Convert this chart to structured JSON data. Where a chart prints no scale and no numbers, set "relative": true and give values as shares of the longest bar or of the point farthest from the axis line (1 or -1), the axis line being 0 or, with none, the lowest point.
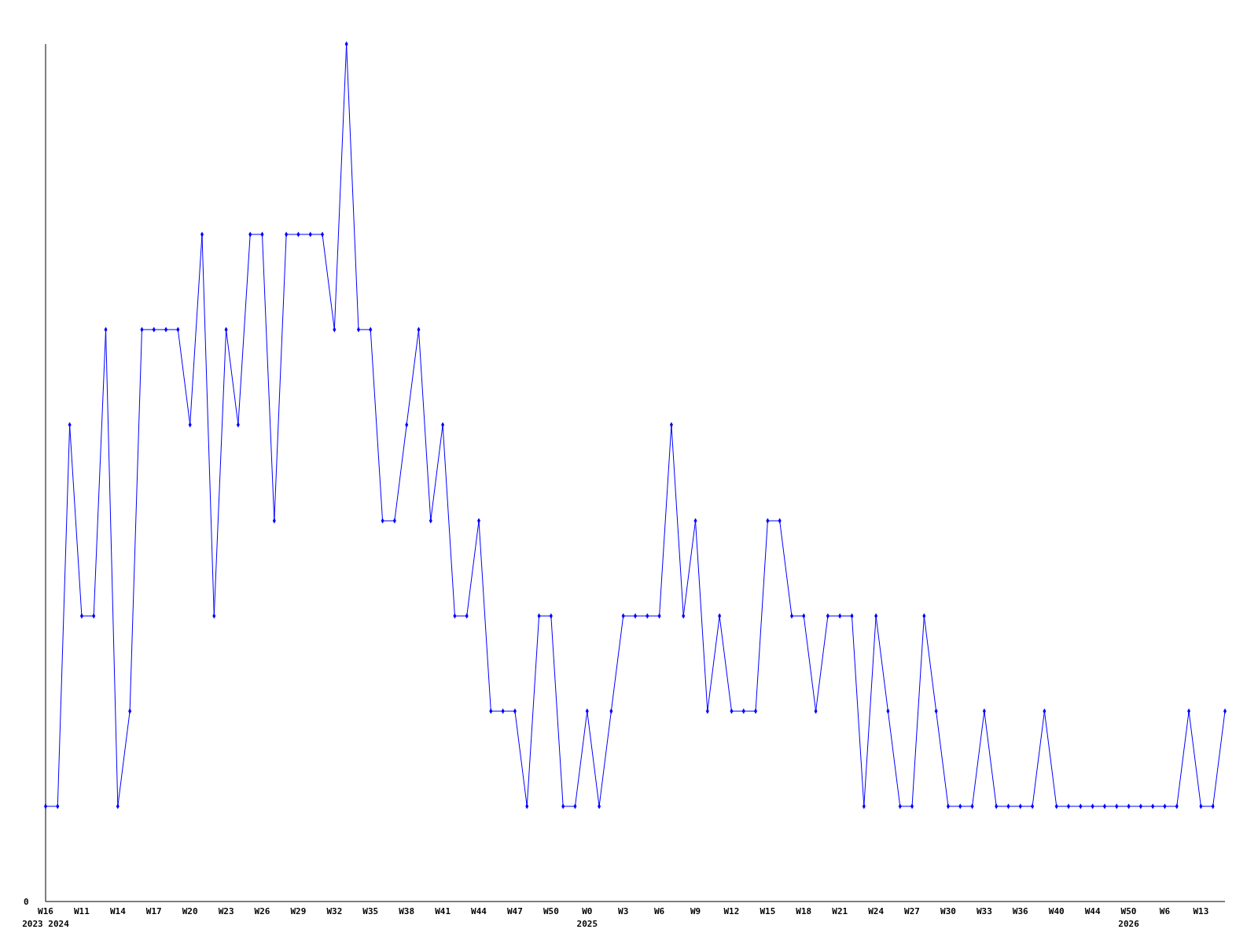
{
  "chart_data": {
    "type": "line",
    "relative": true,
    "marker": "diamond",
    "categories": [
      "W16\n2023 2024",
      null,
      null,
      "W11",
      null,
      null,
      "W14",
      null,
      null,
      "W17",
      null,
      null,
      "W20",
      null,
      null,
      "W23",
      null,
      null,
      "W26",
      null,
      null,
      "W29",
      null,
      null,
      "W32",
      null,
      null,
      "W35",
      null,
      null,
      "W38",
      null,
      null,
      "W41",
      null,
      null,
      "W44",
      null,
      null,
      "W47",
      null,
      null,
      "W50",
      null,
      null,
      "W0\n2025",
      null,
      null,
      "W3",
      null,
      null,
      "W6",
      null,
      null,
      "W9",
      null,
      null,
      "W12",
      null,
      null,
      "W15",
      null,
      null,
      "W18",
      null,
      null,
      "W21",
      null,
      null,
      "W24",
      null,
      null,
      "W27",
      null,
      null,
      "W30",
      null,
      null,
      "W33",
      null,
      null,
      "W36",
      null,
      null,
      "W40",
      null,
      null,
      "W44",
      null,
      null,
      "W50\n2026",
      null,
      null,
      "W6",
      null,
      null,
      "W13",
      null,
      null
    ],
    "series": [
      {
        "color": "#0000ff",
        "values": [
          0.111,
          0.111,
          0.556,
          0.333,
          0.333,
          0.667,
          0.111,
          0.222,
          0.667,
          0.667,
          0.667,
          0.667,
          0.556,
          0.778,
          0.333,
          0.667,
          0.556,
          0.778,
          0.778,
          0.444,
          0.778,
          0.778,
          0.778,
          0.778,
          0.667,
          1,
          0.667,
          0.667,
          0.444,
          0.444,
          0.556,
          0.667,
          0.444,
          0.556,
          0.333,
          0.333,
          0.444,
          0.222,
          0.222,
          0.222,
          0.111,
          0.333,
          0.333,
          0.111,
          0.111,
          0.222,
          0.111,
          0.222,
          0.333,
          0.333,
          0.333,
          0.333,
          0.556,
          0.333,
          0.444,
          0.222,
          0.333,
          0.222,
          0.222,
          0.222,
          0.444,
          0.444,
          0.333,
          0.333,
          0.222,
          0.333,
          0.333,
          0.333,
          0.111,
          0.333,
          0.222,
          0.111,
          0.111,
          0.333,
          0.222,
          0.111,
          0.111,
          0.111,
          0.222,
          0.111,
          0.111,
          0.111,
          0.111,
          0.222,
          0.111,
          0.111,
          0.111,
          0.111,
          0.111,
          0.111,
          0.111,
          0.111,
          0.111,
          0.111,
          0.111,
          0.222,
          0.111,
          0.111,
          0.222
        ]
      }
    ],
    "annotations": [
      "0"
    ]
  }
}
